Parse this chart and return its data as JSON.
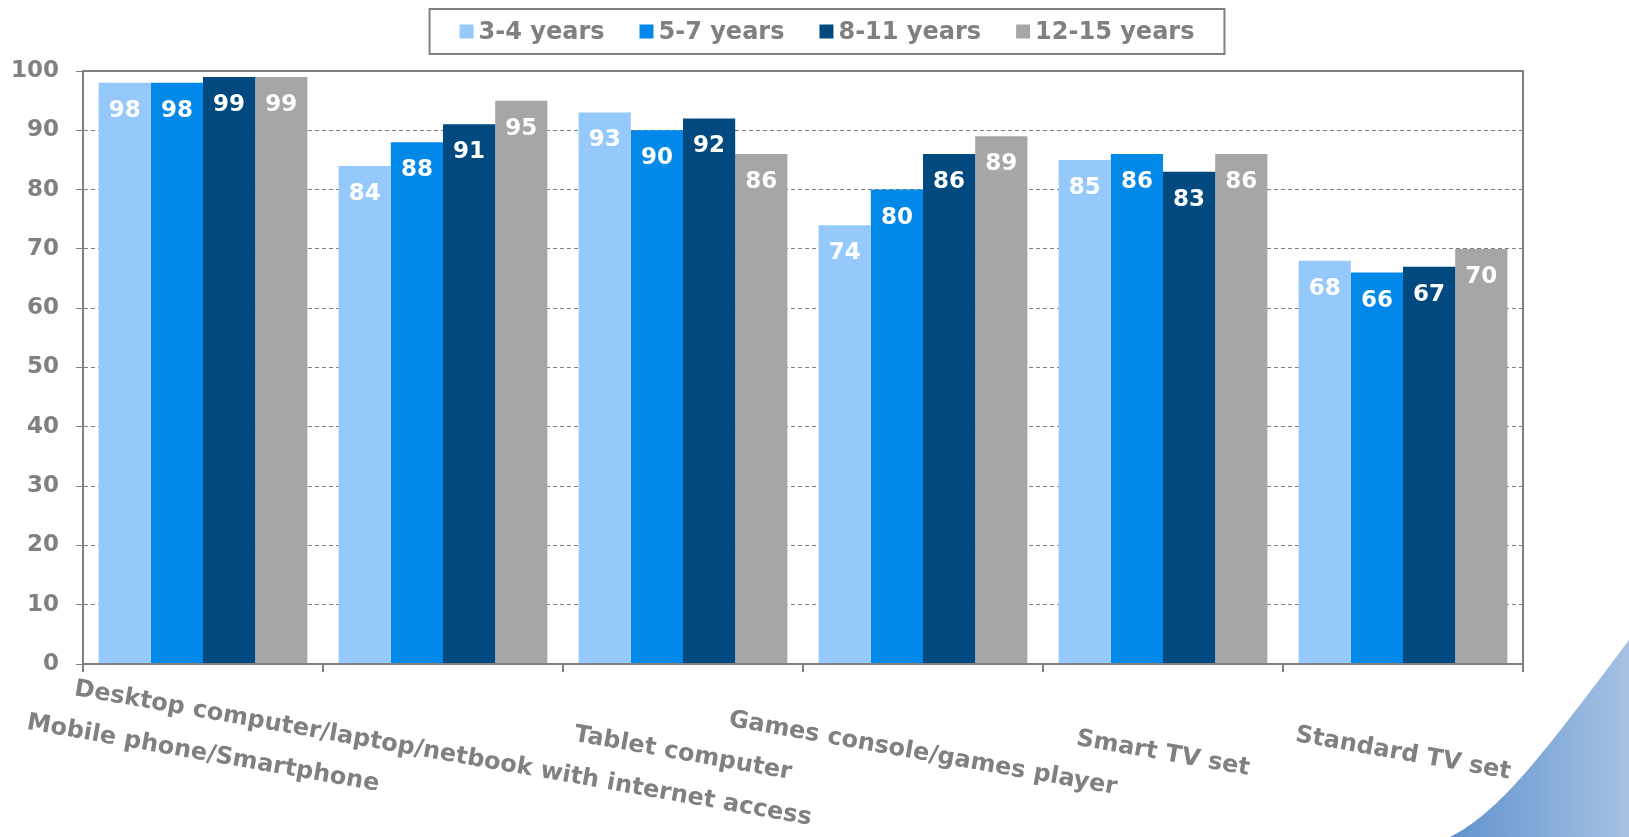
{
  "chart_data": {
    "type": "bar",
    "categories": [
      "Mobile phone/Smartphone",
      "Desktop computer/laptop/netbook with internet access",
      "Tablet computer",
      "Games console/games player",
      "Smart TV set",
      "Standard TV set"
    ],
    "series": [
      {
        "name": "3-4 years",
        "color": "#95c8fb",
        "values": [
          98,
          84,
          93,
          74,
          85,
          68
        ]
      },
      {
        "name": "5-7 years",
        "color": "#0089e8",
        "values": [
          98,
          88,
          90,
          80,
          86,
          66
        ]
      },
      {
        "name": "8-11 years",
        "color": "#004a7f",
        "values": [
          99,
          91,
          92,
          86,
          83,
          67
        ]
      },
      {
        "name": "12-15 years",
        "color": "#a6a6a6",
        "values": [
          99,
          95,
          86,
          89,
          86,
          70
        ]
      }
    ],
    "ylim": [
      0,
      100
    ],
    "yticks": [
      0,
      10,
      20,
      30,
      40,
      50,
      60,
      70,
      80,
      90,
      100
    ],
    "grid": "y",
    "legend": "top",
    "data_labels": true
  }
}
